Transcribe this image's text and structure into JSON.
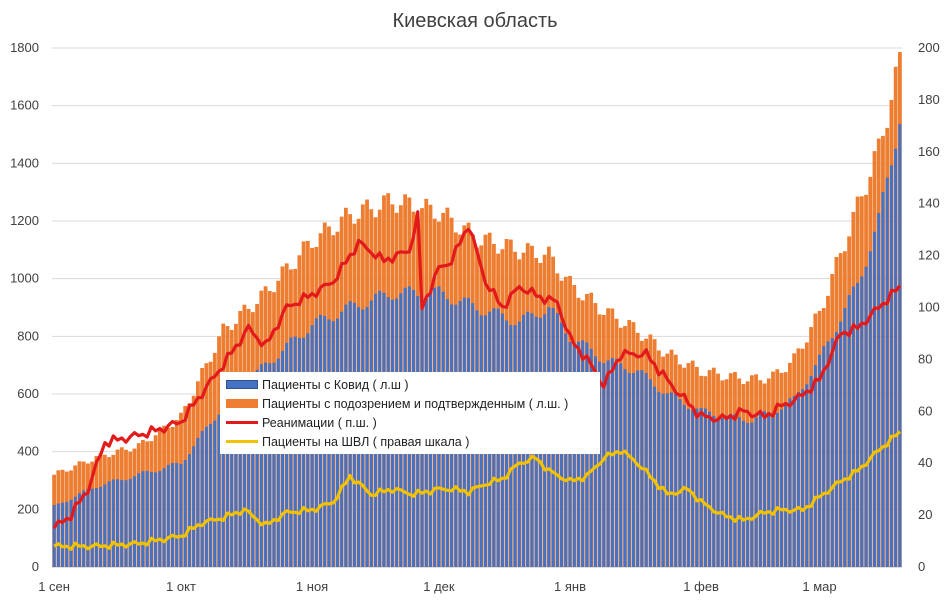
{
  "chart_data": {
    "type": "bar+line",
    "title": "Киевская область",
    "x_tick_labels": [
      "1 сен",
      "1 окт",
      "1 ноя",
      "1 дек",
      "1 янв",
      "1 фев",
      "1 мар"
    ],
    "x_tick_day_index": [
      0,
      30,
      61,
      91,
      122,
      153,
      181
    ],
    "n_days": 201,
    "left_axis": {
      "min": 0,
      "max": 1800,
      "step": 200,
      "ticks": [
        "0",
        "200",
        "400",
        "600",
        "800",
        "1000",
        "1200",
        "1400",
        "1600",
        "1800"
      ]
    },
    "right_axis": {
      "min": 0,
      "max": 200,
      "step": 20,
      "ticks": [
        "0",
        "20",
        "40",
        "60",
        "80",
        "100",
        "120",
        "140",
        "160",
        "180",
        "200"
      ]
    },
    "legend": {
      "covid": "Пациенты с Ковид ( л.ш )",
      "suspected": "Пациенты с подозрением и подтвержденным ( л.ш. )",
      "icu": "Реанимации ( п.ш. )",
      "ventilator": "Пациенты на ШВЛ ( правая шкала )"
    },
    "series": [
      {
        "name": "Пациенты с Ковид ( л.ш )",
        "axis": "left",
        "kind": "bar",
        "color": "#4472c4",
        "keypoints": [
          [
            0,
            210
          ],
          [
            10,
            280
          ],
          [
            20,
            320
          ],
          [
            30,
            360
          ],
          [
            40,
            560
          ],
          [
            50,
            700
          ],
          [
            61,
            840
          ],
          [
            70,
            900
          ],
          [
            80,
            950
          ],
          [
            91,
            950
          ],
          [
            100,
            900
          ],
          [
            110,
            850
          ],
          [
            117,
            900
          ],
          [
            122,
            800
          ],
          [
            130,
            720
          ],
          [
            138,
            680
          ],
          [
            145,
            600
          ],
          [
            153,
            540
          ],
          [
            160,
            520
          ],
          [
            165,
            510
          ],
          [
            170,
            540
          ],
          [
            175,
            580
          ],
          [
            181,
            720
          ],
          [
            190,
            980
          ],
          [
            195,
            1200
          ],
          [
            200,
            1560
          ]
        ]
      },
      {
        "name": "Пациенты с подозрением и подтвержденным ( л.ш. )",
        "axis": "left",
        "kind": "bar",
        "color": "#ed7d31",
        "keypoints": [
          [
            0,
            320
          ],
          [
            10,
            380
          ],
          [
            20,
            420
          ],
          [
            30,
            520
          ],
          [
            40,
            820
          ],
          [
            50,
            950
          ],
          [
            61,
            1130
          ],
          [
            70,
            1220
          ],
          [
            80,
            1270
          ],
          [
            91,
            1230
          ],
          [
            100,
            1140
          ],
          [
            110,
            1100
          ],
          [
            117,
            1080
          ],
          [
            122,
            980
          ],
          [
            130,
            890
          ],
          [
            138,
            820
          ],
          [
            145,
            740
          ],
          [
            153,
            680
          ],
          [
            160,
            660
          ],
          [
            165,
            650
          ],
          [
            170,
            660
          ],
          [
            175,
            720
          ],
          [
            181,
            880
          ],
          [
            190,
            1250
          ],
          [
            195,
            1450
          ],
          [
            200,
            1750
          ]
        ]
      },
      {
        "name": "Реанимации ( п.ш. )",
        "axis": "right",
        "kind": "line",
        "color": "#e31a1c",
        "keypoints": [
          [
            0,
            15
          ],
          [
            4,
            20
          ],
          [
            8,
            30
          ],
          [
            12,
            48
          ],
          [
            18,
            50
          ],
          [
            25,
            53
          ],
          [
            30,
            56
          ],
          [
            40,
            78
          ],
          [
            46,
            92
          ],
          [
            50,
            85
          ],
          [
            55,
            100
          ],
          [
            61,
            105
          ],
          [
            66,
            110
          ],
          [
            72,
            125
          ],
          [
            78,
            118
          ],
          [
            84,
            122
          ],
          [
            86,
            135
          ],
          [
            87,
            100
          ],
          [
            91,
            115
          ],
          [
            94,
            118
          ],
          [
            98,
            132
          ],
          [
            102,
            110
          ],
          [
            106,
            100
          ],
          [
            110,
            108
          ],
          [
            115,
            104
          ],
          [
            119,
            102
          ],
          [
            122,
            88
          ],
          [
            126,
            80
          ],
          [
            130,
            70
          ],
          [
            134,
            82
          ],
          [
            140,
            82
          ],
          [
            146,
            70
          ],
          [
            153,
            58
          ],
          [
            158,
            57
          ],
          [
            163,
            60
          ],
          [
            168,
            58
          ],
          [
            172,
            62
          ],
          [
            176,
            65
          ],
          [
            181,
            72
          ],
          [
            186,
            90
          ],
          [
            190,
            92
          ],
          [
            195,
            100
          ],
          [
            200,
            108
          ]
        ]
      },
      {
        "name": "Пациенты на ШВЛ ( правая шкала )",
        "axis": "right",
        "kind": "line",
        "color": "#f2c200",
        "keypoints": [
          [
            0,
            8
          ],
          [
            10,
            8
          ],
          [
            20,
            9
          ],
          [
            30,
            12
          ],
          [
            35,
            17
          ],
          [
            40,
            19
          ],
          [
            45,
            22
          ],
          [
            50,
            16
          ],
          [
            55,
            21
          ],
          [
            61,
            22
          ],
          [
            66,
            25
          ],
          [
            70,
            35
          ],
          [
            75,
            28
          ],
          [
            80,
            30
          ],
          [
            85,
            28
          ],
          [
            91,
            30
          ],
          [
            94,
            30
          ],
          [
            98,
            29
          ],
          [
            102,
            32
          ],
          [
            106,
            34
          ],
          [
            110,
            40
          ],
          [
            114,
            42
          ],
          [
            117,
            37
          ],
          [
            122,
            33
          ],
          [
            126,
            35
          ],
          [
            130,
            42
          ],
          [
            134,
            45
          ],
          [
            138,
            40
          ],
          [
            145,
            28
          ],
          [
            150,
            30
          ],
          [
            153,
            25
          ],
          [
            158,
            20
          ],
          [
            163,
            18
          ],
          [
            168,
            21
          ],
          [
            172,
            22
          ],
          [
            177,
            22
          ],
          [
            181,
            27
          ],
          [
            186,
            33
          ],
          [
            190,
            37
          ],
          [
            195,
            45
          ],
          [
            200,
            52
          ]
        ]
      }
    ]
  }
}
